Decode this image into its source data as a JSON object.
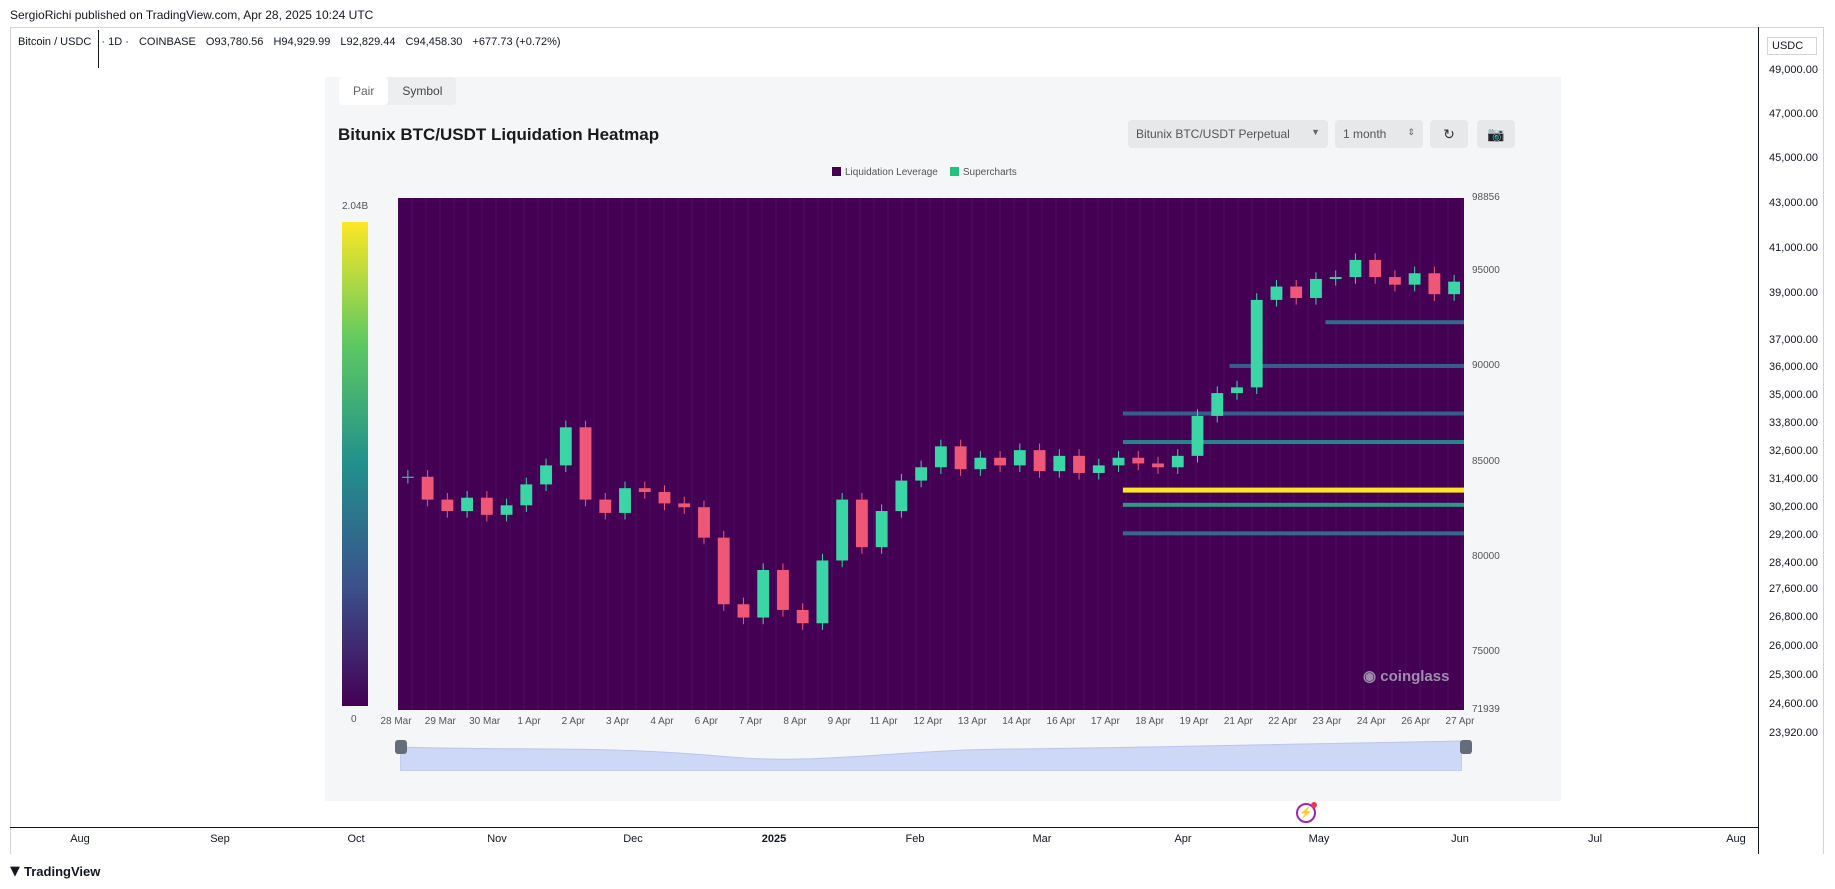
{
  "publisher": "SergioRichi published on TradingView.com, Apr 28, 2025 10:24 UTC",
  "symbol_legend": {
    "pair": "Bitcoin / USDC",
    "interval": "· 1D ·",
    "exchange": "COINBASE",
    "open": "O93,780.56",
    "high": "H94,929.99",
    "low": "L92,829.44",
    "close": "C94,458.30",
    "change": "+677.73 (+0.72%)"
  },
  "price_scale": {
    "unit": "USDC",
    "ticks": [
      "49,000.00",
      "47,000.00",
      "45,000.00",
      "43,000.00",
      "41,000.00",
      "39,000.00",
      "37,000.00",
      "36,000.00",
      "35,000.00",
      "33,800.00",
      "32,600.00",
      "31,400.00",
      "30,200.00",
      "29,200.00",
      "28,400.00",
      "27,600.00",
      "26,800.00",
      "26,000.00",
      "25,300.00",
      "24,600.00",
      "23,920.00"
    ]
  },
  "time_axis": [
    "Aug",
    "Sep",
    "Oct",
    "Nov",
    "Dec",
    "2025",
    "Feb",
    "Mar",
    "Apr",
    "May",
    "Jun",
    "Jul",
    "Aug"
  ],
  "branding": {
    "logo": "TradingView"
  },
  "panel": {
    "tabs": [
      "Pair",
      "Symbol"
    ],
    "title": "Bitunix BTC/USDT Liquidation Heatmap",
    "pair_select": "Bitunix BTC/USDT Perpetual",
    "range_select": "1 month",
    "refresh_icon": "refresh-icon",
    "camera_icon": "camera-icon",
    "legend": [
      {
        "label": "Liquidation Leverage",
        "color": "#440154"
      },
      {
        "label": "Supercharts",
        "color": "#1dc47a"
      }
    ],
    "colorbar": {
      "max": "2.04B",
      "min": "0"
    },
    "watermark": "coinglass"
  },
  "chart_data": {
    "type": "heatmap",
    "title": "Bitunix BTC/USDT Liquidation Heatmap",
    "x_ticks": [
      "28 Mar",
      "29 Mar",
      "30 Mar",
      "1 Apr",
      "2 Apr",
      "3 Apr",
      "4 Apr",
      "6 Apr",
      "7 Apr",
      "8 Apr",
      "9 Apr",
      "11 Apr",
      "12 Apr",
      "13 Apr",
      "14 Apr",
      "16 Apr",
      "17 Apr",
      "18 Apr",
      "19 Apr",
      "21 Apr",
      "22 Apr",
      "23 Apr",
      "24 Apr",
      "26 Apr",
      "27 Apr"
    ],
    "y_ticks": [
      "98856",
      "95000",
      "90000",
      "85000",
      "80000",
      "75000",
      "71939"
    ],
    "ylim": [
      71939,
      98856
    ],
    "color_range": [
      "0",
      "2.04B"
    ],
    "liquidation_bands": [
      {
        "price": 83500,
        "intensity": 1.0,
        "from_frac": 0.68
      },
      {
        "price": 82700,
        "intensity": 0.55,
        "from_frac": 0.68
      },
      {
        "price": 81200,
        "intensity": 0.35,
        "from_frac": 0.68
      },
      {
        "price": 87500,
        "intensity": 0.3,
        "from_frac": 0.68
      },
      {
        "price": 86000,
        "intensity": 0.45,
        "from_frac": 0.68
      },
      {
        "price": 90000,
        "intensity": 0.3,
        "from_frac": 0.78
      },
      {
        "price": 92300,
        "intensity": 0.35,
        "from_frac": 0.87
      }
    ],
    "price_path": [
      84200,
      83000,
      82400,
      83100,
      82200,
      82700,
      83800,
      84800,
      86800,
      83000,
      82300,
      83600,
      83400,
      82800,
      82600,
      81000,
      77500,
      76800,
      79300,
      77200,
      76500,
      79800,
      83000,
      80500,
      82400,
      84000,
      84700,
      85800,
      84600,
      85200,
      84800,
      85600,
      84500,
      85300,
      84400,
      84800,
      85200,
      84900,
      84700,
      85300,
      87400,
      88600,
      88900,
      93500,
      94200,
      93600,
      94600,
      94700,
      95600,
      94700,
      94300,
      94900,
      93800,
      94458
    ]
  }
}
